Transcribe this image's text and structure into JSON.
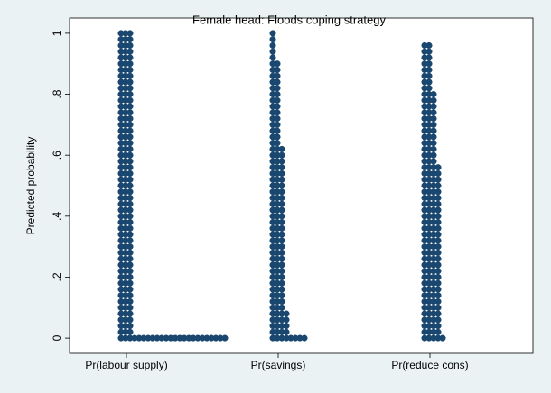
{
  "chart_data": {
    "type": "dot",
    "title": "Female head: Floods coping strategy",
    "y_label": "Predicted probability",
    "categories": [
      "Pr(labour supply)",
      "Pr(savings)",
      "Pr(reduce cons)"
    ],
    "levels": [
      0,
      0.02,
      0.04,
      0.06,
      0.08,
      0.1,
      0.12,
      0.14,
      0.16,
      0.18,
      0.2,
      0.22,
      0.24,
      0.26,
      0.28,
      0.3,
      0.32,
      0.34,
      0.36,
      0.38,
      0.4,
      0.42,
      0.44,
      0.46,
      0.48,
      0.5,
      0.52,
      0.54,
      0.56,
      0.58,
      0.6,
      0.62,
      0.64,
      0.66,
      0.68,
      0.7,
      0.72,
      0.74,
      0.76,
      0.78,
      0.8,
      0.82,
      0.84,
      0.86,
      0.88,
      0.9,
      0.92,
      0.94,
      0.96,
      0.98,
      1
    ],
    "series": [
      {
        "color": "#1a476f",
        "counts": [
          24,
          3,
          3,
          3,
          3,
          3,
          3,
          3,
          3,
          3,
          3,
          3,
          3,
          3,
          3,
          3,
          3,
          3,
          3,
          3,
          3,
          3,
          3,
          3,
          3,
          3,
          3,
          3,
          3,
          3,
          3,
          3,
          3,
          3,
          3,
          3,
          3,
          3,
          3,
          3,
          3,
          3,
          3,
          3,
          3,
          3,
          3,
          3,
          3,
          3,
          3
        ]
      },
      {
        "color": "#1a476f",
        "counts": [
          8,
          4,
          4,
          4,
          4,
          3,
          3,
          3,
          3,
          3,
          3,
          3,
          3,
          3,
          3,
          3,
          3,
          3,
          3,
          3,
          3,
          3,
          3,
          3,
          3,
          3,
          3,
          3,
          3,
          3,
          3,
          3,
          2,
          2,
          2,
          2,
          2,
          2,
          2,
          2,
          2,
          2,
          2,
          2,
          2,
          2,
          1,
          1,
          1,
          1,
          1
        ]
      },
      {
        "color": "#1a476f",
        "counts": [
          5,
          4,
          4,
          4,
          4,
          4,
          4,
          4,
          4,
          4,
          4,
          4,
          4,
          4,
          4,
          4,
          4,
          4,
          4,
          4,
          4,
          4,
          4,
          4,
          4,
          4,
          4,
          4,
          4,
          3,
          3,
          3,
          3,
          3,
          3,
          3,
          3,
          3,
          3,
          3,
          3,
          2,
          2,
          2,
          2,
          2,
          2,
          2,
          2,
          0,
          0
        ]
      }
    ],
    "ylim": [
      -0.05,
      1.05
    ],
    "yticks": [
      0,
      {
        "value": 0.2,
        "label": ".2"
      },
      {
        "value": 0.4,
        "label": ".4"
      },
      {
        "value": 0.6,
        "label": ".6"
      },
      {
        "value": 0.8,
        "label": ".8"
      },
      1
    ]
  }
}
